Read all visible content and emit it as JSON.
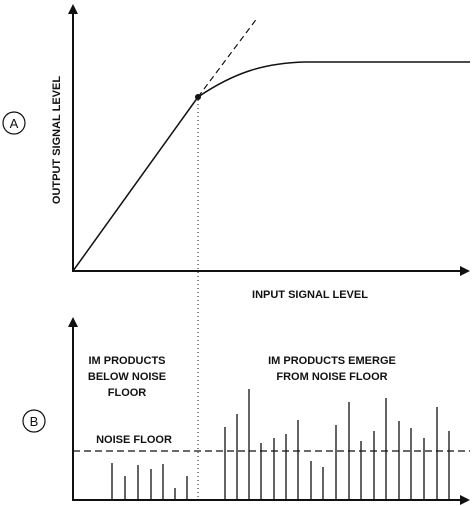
{
  "panel_a": {
    "id_label": "A",
    "y_axis_label": "OUTPUT SIGNAL LEVEL",
    "x_axis_label": "INPUT SIGNAL LEVEL"
  },
  "panel_b": {
    "id_label": "B",
    "left_annotation": [
      "IM PRODUCTS",
      "BELOW NOISE",
      "FLOOR"
    ],
    "right_annotation": [
      "IM PRODUCTS EMERGE",
      "FROM NOISE FLOOR"
    ],
    "noise_floor_label": "NOISE FLOOR"
  }
}
